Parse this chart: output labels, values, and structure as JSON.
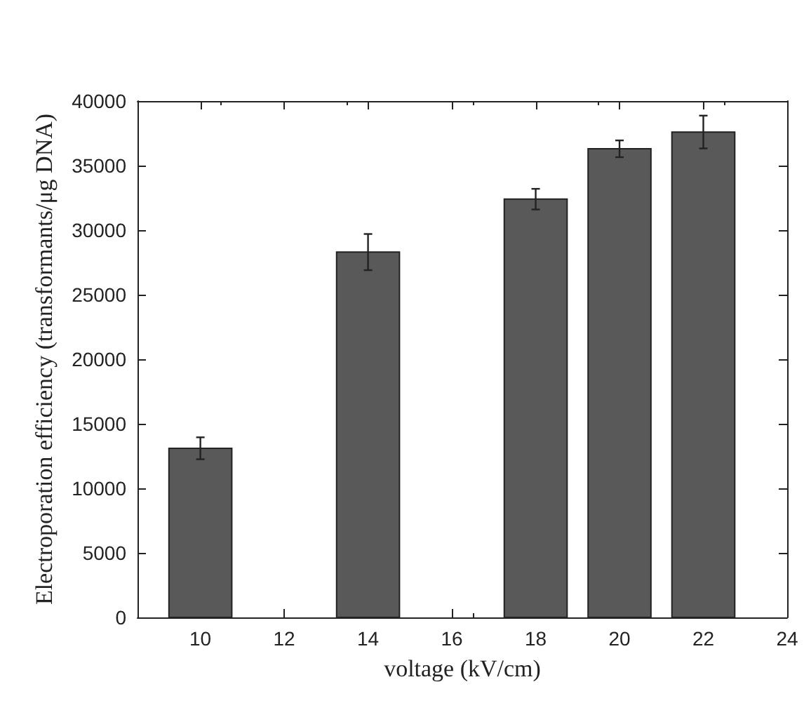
{
  "chart_data": {
    "type": "bar",
    "xlabel": "voltage (kV/cm)",
    "ylabel": "Electroporation efficiency (transformants/μg DNA)",
    "x": [
      10,
      14,
      18,
      20,
      22
    ],
    "values": [
      13100,
      28300,
      32400,
      36300,
      37600
    ],
    "errors": [
      850,
      1400,
      800,
      650,
      1270
    ],
    "color": "#595959",
    "xlim": [
      8.5,
      24
    ],
    "xticks": [
      10,
      12,
      14,
      16,
      18,
      20,
      22,
      24
    ],
    "ylim": [
      0,
      40000
    ],
    "yticks": [
      0,
      5000,
      10000,
      15000,
      20000,
      25000,
      30000,
      35000,
      40000
    ]
  }
}
